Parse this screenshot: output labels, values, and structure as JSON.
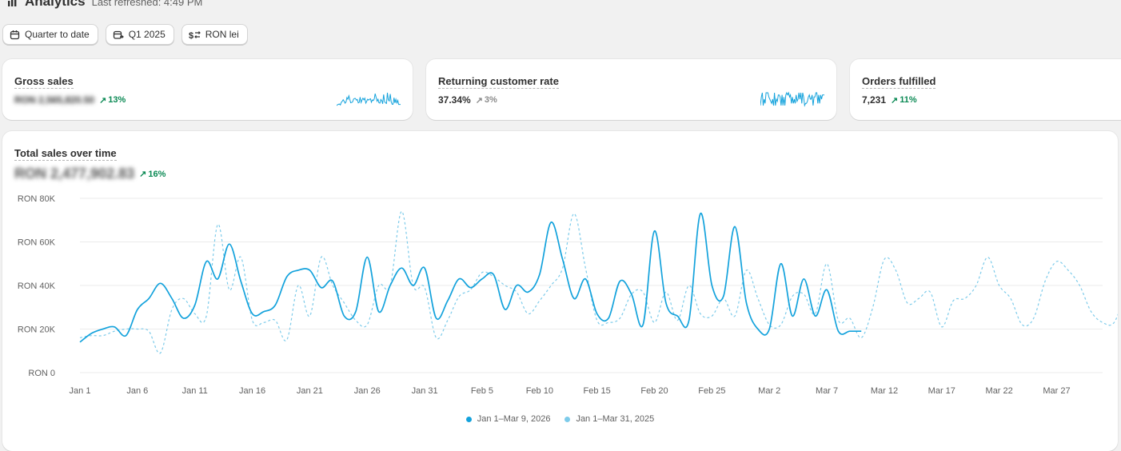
{
  "header": {
    "title": "Analytics",
    "refreshed": "Last refreshed: 4:49 PM"
  },
  "filters": {
    "date_range": "Quarter to date",
    "comparison": "Q1 2025",
    "currency": "RON lei"
  },
  "metrics": [
    {
      "label": "Gross sales",
      "value": "RON 2,565,820.50",
      "delta": "13%",
      "trend": "up"
    },
    {
      "label": "Returning customer rate",
      "value": "37.34%",
      "delta": "3%",
      "trend": "neutral"
    },
    {
      "label": "Orders fulfilled",
      "value": "7,231",
      "delta": "11%",
      "trend": "up"
    }
  ],
  "chart_title": "Total sales over time",
  "chart_total": "RON 2,477,902.83",
  "chart_delta": "16%",
  "colors": {
    "current": "#13a2dc",
    "previous": "#7dcbea",
    "up": "#0c8a55"
  },
  "chart_data": {
    "type": "line",
    "y_ticks": [
      "RON 0",
      "RON 20K",
      "RON 40K",
      "RON 60K",
      "RON 80K"
    ],
    "ylim": [
      0,
      80000
    ],
    "x_ticks": [
      "Jan 1",
      "Jan 6",
      "Jan 11",
      "Jan 16",
      "Jan 21",
      "Jan 26",
      "Jan 31",
      "Feb 5",
      "Feb 10",
      "Feb 15",
      "Feb 20",
      "Feb 25",
      "Mar 2",
      "Mar 7",
      "Mar 12",
      "Mar 17",
      "Mar 22",
      "Mar 27"
    ],
    "series": [
      {
        "name": "Jan 1–Mar 9, 2026",
        "dashed": false,
        "values": [
          14000,
          18000,
          20000,
          21000,
          17000,
          29000,
          34000,
          41000,
          34000,
          25000,
          31000,
          51000,
          43000,
          59000,
          42000,
          27000,
          28000,
          31000,
          44000,
          47000,
          47000,
          39000,
          42000,
          26000,
          28000,
          53000,
          28000,
          40000,
          48000,
          40000,
          48000,
          25000,
          33000,
          43000,
          39000,
          43000,
          45000,
          29000,
          40000,
          37000,
          45000,
          69000,
          52000,
          34000,
          43000,
          27000,
          25000,
          42000,
          36000,
          22000,
          65000,
          32000,
          26000,
          24000,
          73000,
          40000,
          35000,
          67000,
          32000,
          20000,
          20000,
          50000,
          26000,
          43000,
          26000,
          38000,
          19000,
          19000,
          19000
        ]
      },
      {
        "name": "Jan 1–Mar 31, 2025",
        "dashed": true,
        "values": [
          16000,
          17000,
          17000,
          19000,
          20000,
          20000,
          19000,
          9000,
          29000,
          34000,
          27000,
          26000,
          68000,
          38000,
          53000,
          24000,
          23000,
          24000,
          15000,
          40000,
          26000,
          53000,
          40000,
          32000,
          24000,
          22000,
          40000,
          40000,
          74000,
          40000,
          39000,
          16000,
          24000,
          35000,
          38000,
          46000,
          44000,
          40000,
          37000,
          27000,
          33000,
          40000,
          48000,
          73000,
          48000,
          24000,
          23000,
          25000,
          36000,
          37000,
          23000,
          37000,
          24000,
          40000,
          27000,
          26000,
          34000,
          26000,
          47000,
          34000,
          22000,
          22000,
          35000,
          36000,
          27000,
          50000,
          24000,
          25000,
          16000,
          30000,
          52000,
          47000,
          32000,
          34000,
          37000,
          21000,
          33000,
          34000,
          40000,
          53000,
          40000,
          34000,
          22000,
          25000,
          42000,
          51000,
          47000,
          40000,
          28000,
          23000,
          23000,
          37000
        ]
      }
    ]
  }
}
